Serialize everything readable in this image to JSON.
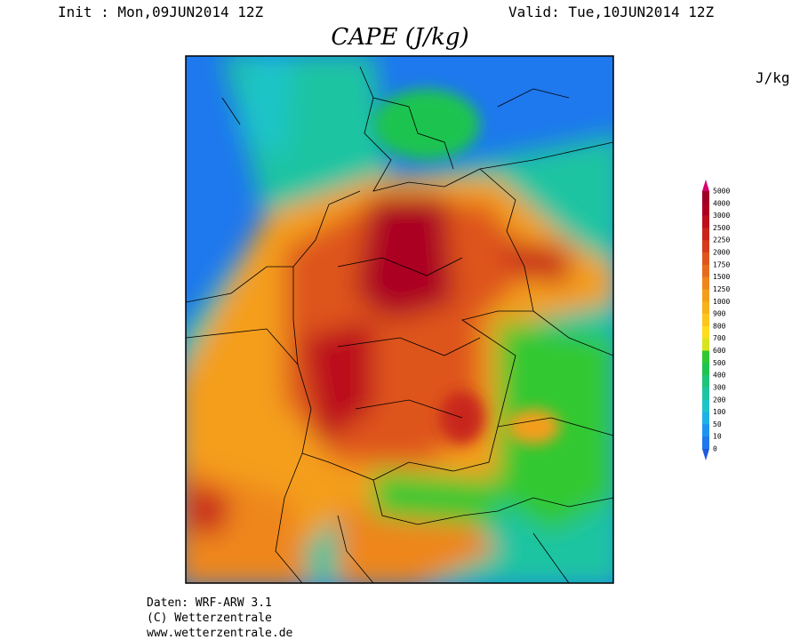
{
  "header": {
    "init": "Init : Mon,09JUN2014 12Z",
    "valid": "Valid: Tue,10JUN2014 12Z",
    "title": "CAPE (J/kg)",
    "unit": "J/kg"
  },
  "legend": {
    "levels": [
      5000,
      4000,
      3000,
      2500,
      2250,
      2000,
      1750,
      1500,
      1250,
      1000,
      900,
      800,
      700,
      600,
      500,
      400,
      300,
      200,
      100,
      50,
      10,
      0
    ],
    "colors": [
      "#d8006e",
      "#9e0028",
      "#ac0020",
      "#bc101c",
      "#c8261c",
      "#d43c1c",
      "#de541c",
      "#e66c1c",
      "#ee861c",
      "#f49e1c",
      "#f8b21c",
      "#fcc61c",
      "#ffdc1c",
      "#d8e41c",
      "#30c830",
      "#1ec450",
      "#1ec47a",
      "#1ec4a2",
      "#1ec4c8",
      "#1eb0e6",
      "#1e94f0",
      "#1e78ee",
      "#1e5adc"
    ]
  },
  "footer": {
    "lines": [
      "Daten: WRF-ARW 3.1",
      "(C) Wetterzentrale",
      "www.wetterzentrale.de"
    ]
  }
}
